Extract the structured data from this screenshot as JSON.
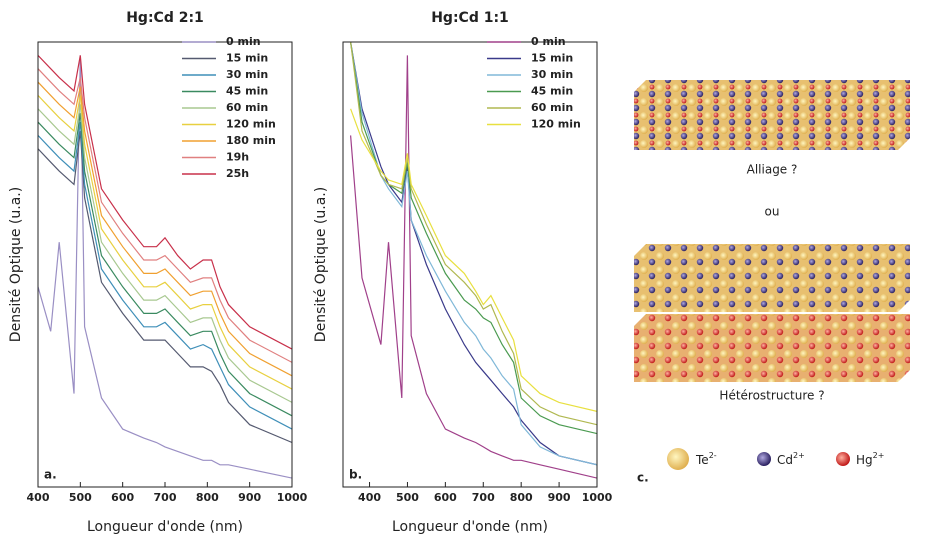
{
  "chart_data": [
    {
      "type": "line",
      "title": "Hg:Cd 2:1",
      "x_label": "Longueur d'onde (nm)",
      "y_label": "Densité Optique (u.a.)",
      "panel_label": "a.",
      "xlim": [
        400,
        1000
      ],
      "xticks": [
        400,
        500,
        600,
        700,
        800,
        900,
        1000
      ],
      "ylim": [
        0,
        100
      ],
      "legend": "upper right",
      "x": [
        400,
        430,
        450,
        485,
        500,
        510,
        550,
        600,
        650,
        680,
        700,
        730,
        760,
        790,
        810,
        830,
        850,
        900,
        1000
      ],
      "series": [
        {
          "name": "0 min",
          "color": "#9a8fc4",
          "values": [
            45,
            35,
            55,
            21,
            97,
            36,
            20,
            13,
            11,
            10,
            9,
            8,
            7,
            6,
            6,
            5,
            5,
            4,
            2
          ]
        },
        {
          "name": "15 min",
          "color": "#555a70",
          "values": [
            76,
            73,
            71,
            68,
            80,
            65,
            46,
            39,
            33,
            33,
            33,
            30,
            27,
            27,
            26,
            23,
            19,
            14,
            10
          ]
        },
        {
          "name": "30 min",
          "color": "#3f8fb8",
          "values": [
            79,
            76,
            74,
            71,
            82,
            68,
            49,
            42,
            36,
            36,
            37,
            34,
            31,
            32,
            31,
            27,
            23,
            18,
            13
          ]
        },
        {
          "name": "45 min",
          "color": "#3a8a60",
          "values": [
            82,
            79,
            77,
            74,
            84,
            71,
            52,
            45,
            39,
            39,
            40,
            37,
            34,
            35,
            35,
            30,
            26,
            21,
            16
          ]
        },
        {
          "name": "60 min",
          "color": "#a8c890",
          "values": [
            85,
            82,
            80,
            77,
            86,
            74,
            55,
            48,
            42,
            42,
            43,
            40,
            37,
            38,
            38,
            33,
            29,
            24,
            19
          ]
        },
        {
          "name": "120 min",
          "color": "#e8d040",
          "values": [
            88,
            85,
            83,
            80,
            88,
            77,
            58,
            51,
            45,
            45,
            46,
            43,
            40,
            41,
            41,
            36,
            32,
            27,
            22
          ]
        },
        {
          "name": "180 min",
          "color": "#f0a030",
          "values": [
            91,
            88,
            86,
            83,
            90,
            80,
            61,
            54,
            48,
            48,
            49,
            46,
            43,
            44,
            44,
            39,
            35,
            30,
            25
          ]
        },
        {
          "name": "19h",
          "color": "#e08080",
          "values": [
            94,
            91,
            89,
            86,
            92,
            83,
            64,
            57,
            51,
            51,
            52,
            49,
            46,
            47,
            47,
            42,
            38,
            33,
            28
          ]
        },
        {
          "name": "25h",
          "color": "#c8304a",
          "values": [
            97,
            94,
            92,
            89,
            97,
            86,
            67,
            60,
            54,
            54,
            56,
            52,
            49,
            51,
            51,
            45,
            41,
            36,
            31
          ]
        }
      ]
    },
    {
      "type": "line",
      "title": "Hg:Cd 1:1",
      "x_label": "Longueur d'onde (nm)",
      "y_label": "Densité Optique (u.a.)",
      "panel_label": "b.",
      "xlim": [
        330,
        1000
      ],
      "xticks": [
        400,
        500,
        600,
        700,
        800,
        900,
        1000
      ],
      "ylim": [
        0,
        100
      ],
      "legend": "upper right",
      "x": [
        350,
        380,
        430,
        450,
        485,
        500,
        510,
        550,
        600,
        650,
        680,
        700,
        720,
        750,
        780,
        800,
        850,
        900,
        1000
      ],
      "series": [
        {
          "name": "0 min",
          "color": "#a0408a",
          "values": [
            79,
            47,
            32,
            55,
            20,
            97,
            34,
            21,
            13,
            11,
            10,
            9,
            8,
            7,
            6,
            6,
            5,
            4,
            2
          ]
        },
        {
          "name": "15 min",
          "color": "#3a3a8a",
          "values": [
            100,
            85,
            72,
            68,
            64,
            72,
            60,
            50,
            40,
            32,
            28,
            26,
            24,
            21,
            18,
            15,
            10,
            7,
            5
          ]
        },
        {
          "name": "30 min",
          "color": "#80b8d8",
          "values": [
            100,
            84,
            70,
            67,
            63,
            71,
            60,
            52,
            44,
            37,
            34,
            31,
            29,
            25,
            22,
            14,
            9,
            7,
            5
          ]
        },
        {
          "name": "45 min",
          "color": "#4a9a50",
          "values": [
            100,
            82,
            70,
            68,
            66,
            73,
            65,
            57,
            48,
            42,
            40,
            38,
            37,
            32,
            28,
            20,
            16,
            14,
            12
          ]
        },
        {
          "name": "60 min",
          "color": "#b0b850",
          "values": [
            100,
            80,
            70,
            68,
            67,
            74,
            67,
            59,
            50,
            46,
            43,
            40,
            41,
            35,
            30,
            22,
            18,
            16,
            14
          ]
        },
        {
          "name": "120 min",
          "color": "#e8e040",
          "values": [
            85,
            78,
            71,
            69,
            68,
            75,
            68,
            61,
            52,
            48,
            44,
            41,
            43,
            38,
            33,
            25,
            21,
            19,
            17
          ]
        }
      ]
    }
  ],
  "diagram": {
    "label_alloy": "Alliage ?",
    "label_or": "ou",
    "label_hetero": "Hétérostructure ?",
    "panel_label": "c.",
    "legend": [
      {
        "symbol": "Te",
        "charge": "2-"
      },
      {
        "symbol": "Cd",
        "charge": "2+"
      },
      {
        "symbol": "Hg",
        "charge": "2+"
      }
    ]
  }
}
